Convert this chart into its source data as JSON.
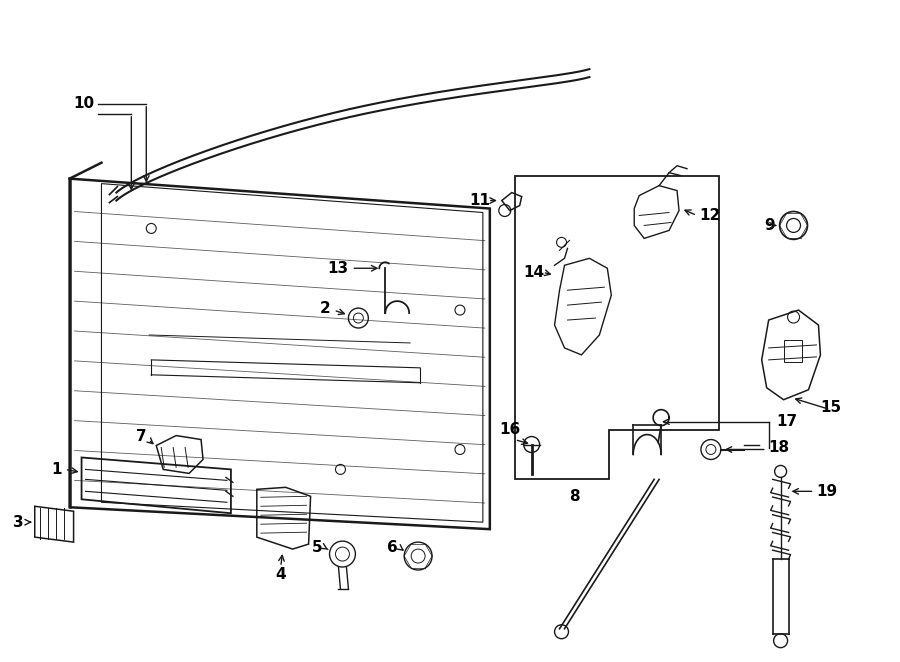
{
  "bg_color": "#ffffff",
  "line_color": "#1a1a1a",
  "text_color": "#000000",
  "figsize": [
    9.0,
    6.62
  ],
  "dpi": 100
}
